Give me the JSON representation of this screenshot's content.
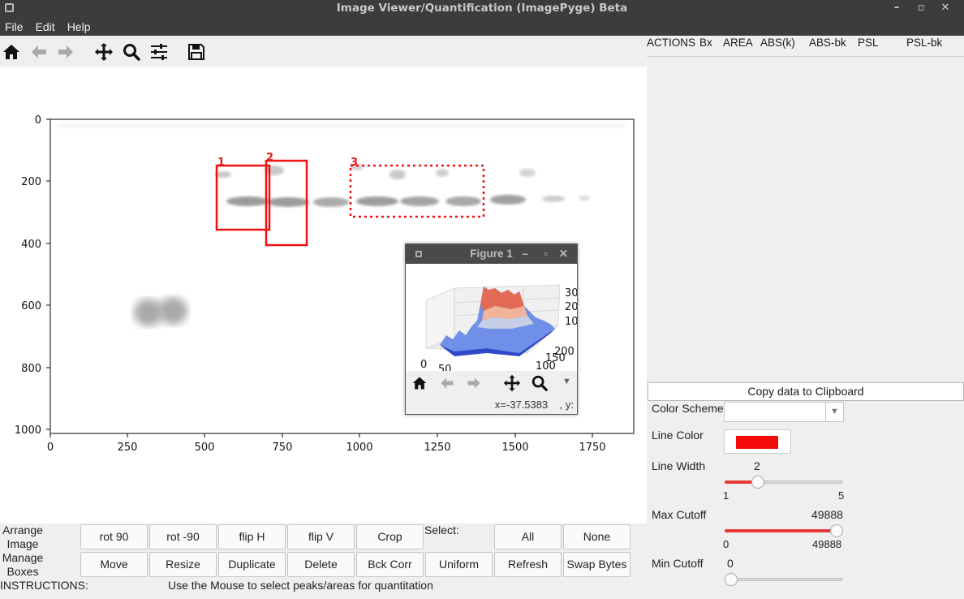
{
  "window": {
    "title": "Image Viewer/Quantification (ImagePyge) Beta"
  },
  "menu": [
    "File",
    "Edit",
    "Help"
  ],
  "toolbar": {
    "icons": [
      "home-icon",
      "back-arrow-icon",
      "forward-arrow-icon",
      "pan-icon",
      "zoom-icon",
      "configure-subplots-icon",
      "save-icon"
    ]
  },
  "plot": {
    "x_ticks": [
      "0",
      "250",
      "500",
      "750",
      "1000",
      "1250",
      "1500",
      "1750"
    ],
    "y_ticks": [
      "0",
      "200",
      "400",
      "600",
      "800",
      "1000"
    ],
    "boxes": [
      {
        "label": "1",
        "style": "solid",
        "color": "#ee1111"
      },
      {
        "label": "2",
        "style": "solid",
        "color": "#ee1111"
      },
      {
        "label": "3",
        "style": "dotted",
        "color": "#ee1111"
      }
    ]
  },
  "figure1": {
    "title": "Figure 1",
    "z_ticks": [
      "30",
      "20",
      "10"
    ],
    "y_ticks": [
      "200",
      "150",
      "100"
    ],
    "x_ticks": [
      "0",
      "50"
    ],
    "status": "x=-37.5383    , y:"
  },
  "table": {
    "headers": [
      "ACTIONS",
      "Bx",
      "AREA",
      "ABS(k)",
      "ABS-bk",
      "PSL",
      "PSL-bk"
    ]
  },
  "panel": {
    "copy_label": "Copy data to Clipboard",
    "color_scheme_label": "Color Scheme",
    "line_color_label": "Line Color",
    "line_color": "#f50a0a",
    "line_width_label": "Line Width",
    "line_width": "2",
    "line_width_min": "1",
    "line_width_max": "5",
    "line_width_level": 0.25,
    "max_cutoff_label": "Max Cutoff",
    "max_cutoff": "49888",
    "max_cutoff_min": "0",
    "max_cutoff_max": "49888",
    "max_cutoff_level": 1.0,
    "min_cutoff_label": "Min Cutoff",
    "min_cutoff": "0",
    "min_cutoff_level": 0.0
  },
  "bottom": {
    "arrange_label": "Arrange Image",
    "manage_label": "Manage Boxes",
    "select_label": "Select:",
    "instructions_label": "INSTRUCTIONS:",
    "instructions_text": "Use the Mouse to select peaks/areas for quantitation",
    "row1": [
      "rot 90",
      "rot -90",
      "flip H",
      "flip V",
      "Crop"
    ],
    "select_btns": [
      "All",
      "None"
    ],
    "row2": [
      "Move",
      "Resize",
      "Duplicate",
      "Delete",
      "Bck Corr",
      "Uniform",
      "Refresh",
      "Swap Bytes"
    ]
  }
}
